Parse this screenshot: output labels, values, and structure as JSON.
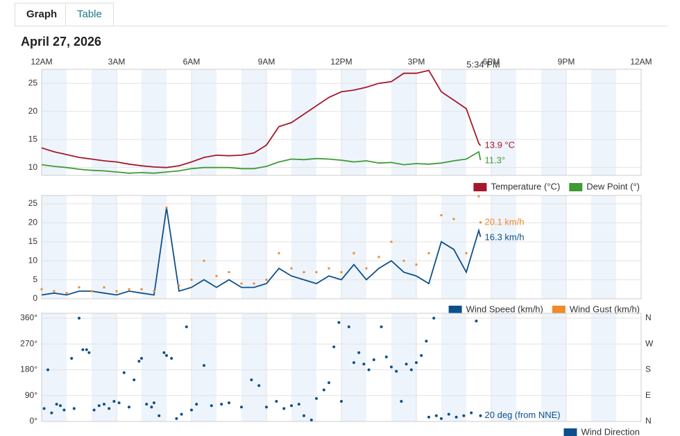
{
  "tabs": [
    "Graph",
    "Table"
  ],
  "date": "April 27, 2026",
  "chart_data": [
    {
      "type": "line",
      "xlim": [
        0,
        24
      ],
      "xticks": [
        {
          "value": 0,
          "label": "12AM"
        },
        {
          "value": 3,
          "label": "3AM"
        },
        {
          "value": 6,
          "label": "6AM"
        },
        {
          "value": 9,
          "label": "9AM"
        },
        {
          "value": 12,
          "label": "12PM"
        },
        {
          "value": 15,
          "label": "3PM"
        },
        {
          "value": 18,
          "label": "6PM"
        },
        {
          "value": 21,
          "label": "9PM"
        },
        {
          "value": 24,
          "label": "12AM"
        }
      ],
      "marker": {
        "x": 17.57,
        "label": "5:34 PM"
      },
      "x": [
        0,
        0.5,
        1,
        1.5,
        2,
        2.5,
        3,
        3.5,
        4,
        4.5,
        5,
        5.5,
        6,
        6.5,
        7,
        7.5,
        8,
        8.5,
        9,
        9.5,
        10,
        10.5,
        11,
        11.5,
        12,
        12.5,
        13,
        13.5,
        14,
        14.5,
        15,
        15.5,
        16,
        16.5,
        17,
        17.5,
        17.57
      ],
      "ylim": [
        8.6,
        27.5
      ],
      "yticks": [
        10,
        15,
        20,
        25
      ],
      "series": [
        {
          "name": "Temperature (°C)",
          "color": "#a5182a",
          "values": [
            13.5,
            12.8,
            12.3,
            11.8,
            11.5,
            11.2,
            11.0,
            10.6,
            10.3,
            10.1,
            10.0,
            10.3,
            11.0,
            11.8,
            12.2,
            12.1,
            12.2,
            12.6,
            14.0,
            17.3,
            18.0,
            19.5,
            21.0,
            22.5,
            23.5,
            23.8,
            24.3,
            25.0,
            25.3,
            26.8,
            26.8,
            27.3,
            23.5,
            22.0,
            20.5,
            14.3,
            13.9
          ],
          "value_labels": [
            null,
            null,
            null,
            null,
            null,
            null,
            null,
            null,
            null,
            null,
            null,
            null,
            null,
            null,
            null,
            null,
            null,
            null,
            null,
            null,
            null,
            null,
            null,
            null,
            null,
            null,
            null,
            null,
            null,
            null,
            null,
            null,
            null,
            null,
            null,
            null,
            "13.9 °C"
          ]
        },
        {
          "name": "Dew Point (°)",
          "color": "#3f9a36",
          "values": [
            10.5,
            10.2,
            10.0,
            9.7,
            9.5,
            9.4,
            9.2,
            9.0,
            9.1,
            9.0,
            9.2,
            9.4,
            9.8,
            10.0,
            10.0,
            10.0,
            9.8,
            9.8,
            10.2,
            11.0,
            11.5,
            11.4,
            11.6,
            11.5,
            11.3,
            11.0,
            11.2,
            10.8,
            10.9,
            10.5,
            10.7,
            10.6,
            10.8,
            11.2,
            11.5,
            12.8,
            11.3
          ],
          "value_labels": [
            null,
            null,
            null,
            null,
            null,
            null,
            null,
            null,
            null,
            null,
            null,
            null,
            null,
            null,
            null,
            null,
            null,
            null,
            null,
            null,
            null,
            null,
            null,
            null,
            null,
            null,
            null,
            null,
            null,
            null,
            null,
            null,
            null,
            null,
            null,
            null,
            "11.3°"
          ]
        }
      ]
    },
    {
      "type": "line",
      "x": [
        0,
        0.5,
        1,
        1.5,
        2,
        2.5,
        3,
        3.5,
        4,
        4.5,
        5,
        5.5,
        6,
        6.5,
        7,
        7.5,
        8,
        8.5,
        9,
        9.5,
        10,
        10.5,
        11,
        11.5,
        12,
        12.5,
        13,
        13.5,
        14,
        14.5,
        15,
        15.5,
        16,
        16.5,
        17,
        17.5,
        17.57
      ],
      "ylim": [
        0,
        27.2
      ],
      "yticks": [
        0,
        5,
        10,
        15,
        20,
        25
      ],
      "series": [
        {
          "name": "Wind Speed (km/h)",
          "color": "#0d4f8b",
          "values": [
            1,
            1.5,
            1,
            2,
            2,
            1.5,
            1,
            2,
            1.5,
            1,
            24,
            2,
            3,
            5,
            3,
            5,
            3,
            3,
            4,
            8,
            6,
            5,
            4,
            6,
            5,
            9,
            5,
            8,
            10,
            7,
            6,
            4,
            15,
            13,
            7,
            18,
            16.3
          ],
          "value_labels": [
            null,
            null,
            null,
            null,
            null,
            null,
            null,
            null,
            null,
            null,
            null,
            null,
            null,
            null,
            null,
            null,
            null,
            null,
            null,
            null,
            null,
            null,
            null,
            null,
            null,
            null,
            null,
            null,
            null,
            null,
            null,
            null,
            null,
            null,
            null,
            null,
            "16.3 km/h"
          ]
        },
        {
          "name": "Wind Gust (km/h)",
          "color": "#f08a2b",
          "style": "dots",
          "values": [
            2.5,
            2,
            1.5,
            3,
            2,
            3,
            2,
            2.5,
            2.5,
            2,
            24,
            3.5,
            5,
            10,
            6,
            7,
            4,
            4,
            5,
            12,
            8,
            7,
            7,
            8,
            7,
            12,
            8,
            11,
            15,
            10,
            9,
            12,
            22,
            21,
            12,
            27,
            20.1
          ],
          "value_labels": [
            null,
            null,
            null,
            null,
            null,
            null,
            null,
            null,
            null,
            null,
            null,
            null,
            null,
            null,
            null,
            null,
            null,
            null,
            null,
            null,
            null,
            null,
            null,
            null,
            null,
            null,
            null,
            null,
            null,
            null,
            null,
            null,
            null,
            null,
            null,
            null,
            "20.1 km/h"
          ]
        }
      ]
    },
    {
      "type": "scatter",
      "x": [
        0.1,
        0.25,
        0.4,
        0.6,
        0.75,
        0.9,
        1.2,
        1.3,
        1.5,
        1.65,
        1.8,
        1.9,
        2.1,
        2.3,
        2.5,
        2.7,
        2.9,
        3.1,
        3.3,
        3.5,
        3.7,
        3.9,
        4.0,
        4.2,
        4.4,
        4.5,
        4.7,
        4.9,
        5.0,
        5.2,
        5.4,
        5.6,
        5.8,
        6.0,
        6.2,
        6.5,
        6.8,
        7.2,
        7.5,
        8.0,
        8.4,
        8.7,
        9.0,
        9.4,
        9.7,
        10.0,
        10.3,
        10.5,
        10.8,
        11.0,
        11.3,
        11.5,
        11.7,
        11.9,
        12.0,
        12.3,
        12.5,
        12.7,
        12.9,
        13.1,
        13.3,
        13.6,
        13.8,
        14.0,
        14.2,
        14.4,
        14.6,
        14.8,
        15.0,
        15.2,
        15.4,
        15.5,
        15.7,
        15.8,
        16.0,
        16.3,
        16.6,
        16.9,
        17.2,
        17.4,
        17.57
      ],
      "ylim": [
        0,
        377
      ],
      "yticks": [
        {
          "value": 0,
          "label": "0°"
        },
        {
          "value": 90,
          "label": "90°"
        },
        {
          "value": 180,
          "label": "180°"
        },
        {
          "value": 270,
          "label": "270°"
        },
        {
          "value": 360,
          "label": "360°"
        }
      ],
      "y2lim": [
        0,
        377
      ],
      "y2ticks": [
        {
          "value": 0,
          "label": "N"
        },
        {
          "value": 90,
          "label": "E"
        },
        {
          "value": 180,
          "label": "S"
        },
        {
          "value": 270,
          "label": "W"
        },
        {
          "value": 360,
          "label": "N"
        }
      ],
      "series": [
        {
          "name": "Wind Direction",
          "color": "#0d4f8b",
          "values": [
            45,
            180,
            30,
            60,
            55,
            40,
            220,
            45,
            360,
            250,
            250,
            240,
            40,
            55,
            60,
            45,
            70,
            65,
            170,
            50,
            145,
            210,
            220,
            60,
            50,
            65,
            20,
            240,
            230,
            220,
            10,
            25,
            330,
            40,
            60,
            195,
            55,
            60,
            65,
            50,
            145,
            125,
            50,
            70,
            45,
            55,
            60,
            20,
            5,
            80,
            110,
            135,
            260,
            345,
            70,
            330,
            205,
            240,
            200,
            180,
            215,
            330,
            225,
            190,
            175,
            70,
            200,
            180,
            205,
            230,
            280,
            15,
            360,
            20,
            10,
            25,
            15,
            20,
            30,
            350,
            20
          ],
          "value_labels": [
            null,
            null,
            null,
            null,
            null,
            null,
            null,
            null,
            null,
            null,
            null,
            null,
            null,
            null,
            null,
            null,
            null,
            null,
            null,
            null,
            null,
            null,
            null,
            null,
            null,
            null,
            null,
            null,
            null,
            null,
            null,
            null,
            null,
            null,
            null,
            null,
            null,
            null,
            null,
            null,
            null,
            null,
            null,
            null,
            null,
            null,
            null,
            null,
            null,
            null,
            null,
            null,
            null,
            null,
            null,
            null,
            null,
            null,
            null,
            null,
            null,
            null,
            null,
            null,
            null,
            null,
            null,
            null,
            null,
            null,
            null,
            null,
            null,
            null,
            null,
            null,
            null,
            null,
            null,
            null,
            "20 deg (from NNE)"
          ]
        }
      ]
    }
  ]
}
